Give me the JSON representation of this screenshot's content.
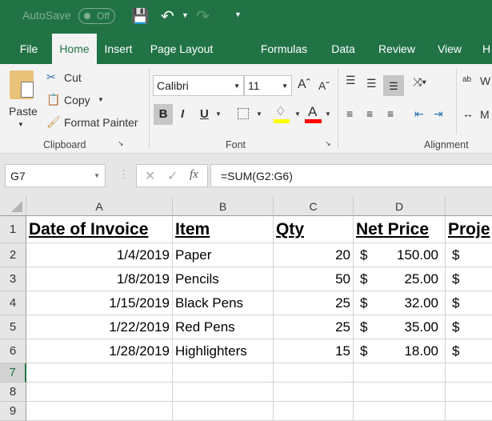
{
  "titlebar": {
    "autosave_label": "AutoSave",
    "autosave_state": "Off",
    "accent": "#217346"
  },
  "tabs": [
    {
      "label": "File"
    },
    {
      "label": "Home",
      "active": true
    },
    {
      "label": "Insert"
    },
    {
      "label": "Page Layout"
    },
    {
      "label": "Formulas"
    },
    {
      "label": "Data"
    },
    {
      "label": "Review"
    },
    {
      "label": "View"
    },
    {
      "label": "H"
    }
  ],
  "ribbon": {
    "clipboard": {
      "paste": "Paste",
      "cut": "Cut",
      "copy": "Copy",
      "format_painter": "Format Painter",
      "group": "Clipboard"
    },
    "font": {
      "name": "Calibri",
      "size": "11",
      "bold": "B",
      "italic": "I",
      "underline": "U",
      "font_color_glyph": "A",
      "group": "Font",
      "highlight_color": "#ffff00",
      "font_color": "#ff0000"
    },
    "alignment": {
      "group": "Alignment",
      "wrap": "W",
      "merge": "M"
    }
  },
  "formula_bar": {
    "name_box": "G7",
    "fx": "fx",
    "formula": "=SUM(G2:G6)"
  },
  "sheet": {
    "columns": [
      "A",
      "B",
      "C",
      "D",
      ""
    ],
    "rows": [
      "1",
      "2",
      "3",
      "4",
      "5",
      "6",
      "7",
      "8",
      "9"
    ],
    "header": [
      "Date of Invoice",
      "Item",
      "Qty",
      "Net Price",
      "Proje"
    ],
    "data": [
      [
        "1/4/2019",
        "Paper",
        "20",
        "$",
        "150.00",
        "$"
      ],
      [
        "1/8/2019",
        "Pencils",
        "50",
        "$",
        "25.00",
        "$"
      ],
      [
        "1/15/2019",
        "Black Pens",
        "25",
        "$",
        "32.00",
        "$"
      ],
      [
        "1/22/2019",
        "Red Pens",
        "25",
        "$",
        "35.00",
        "$"
      ],
      [
        "1/28/2019",
        "Highlighters",
        "15",
        "$",
        "18.00",
        "$"
      ]
    ]
  }
}
